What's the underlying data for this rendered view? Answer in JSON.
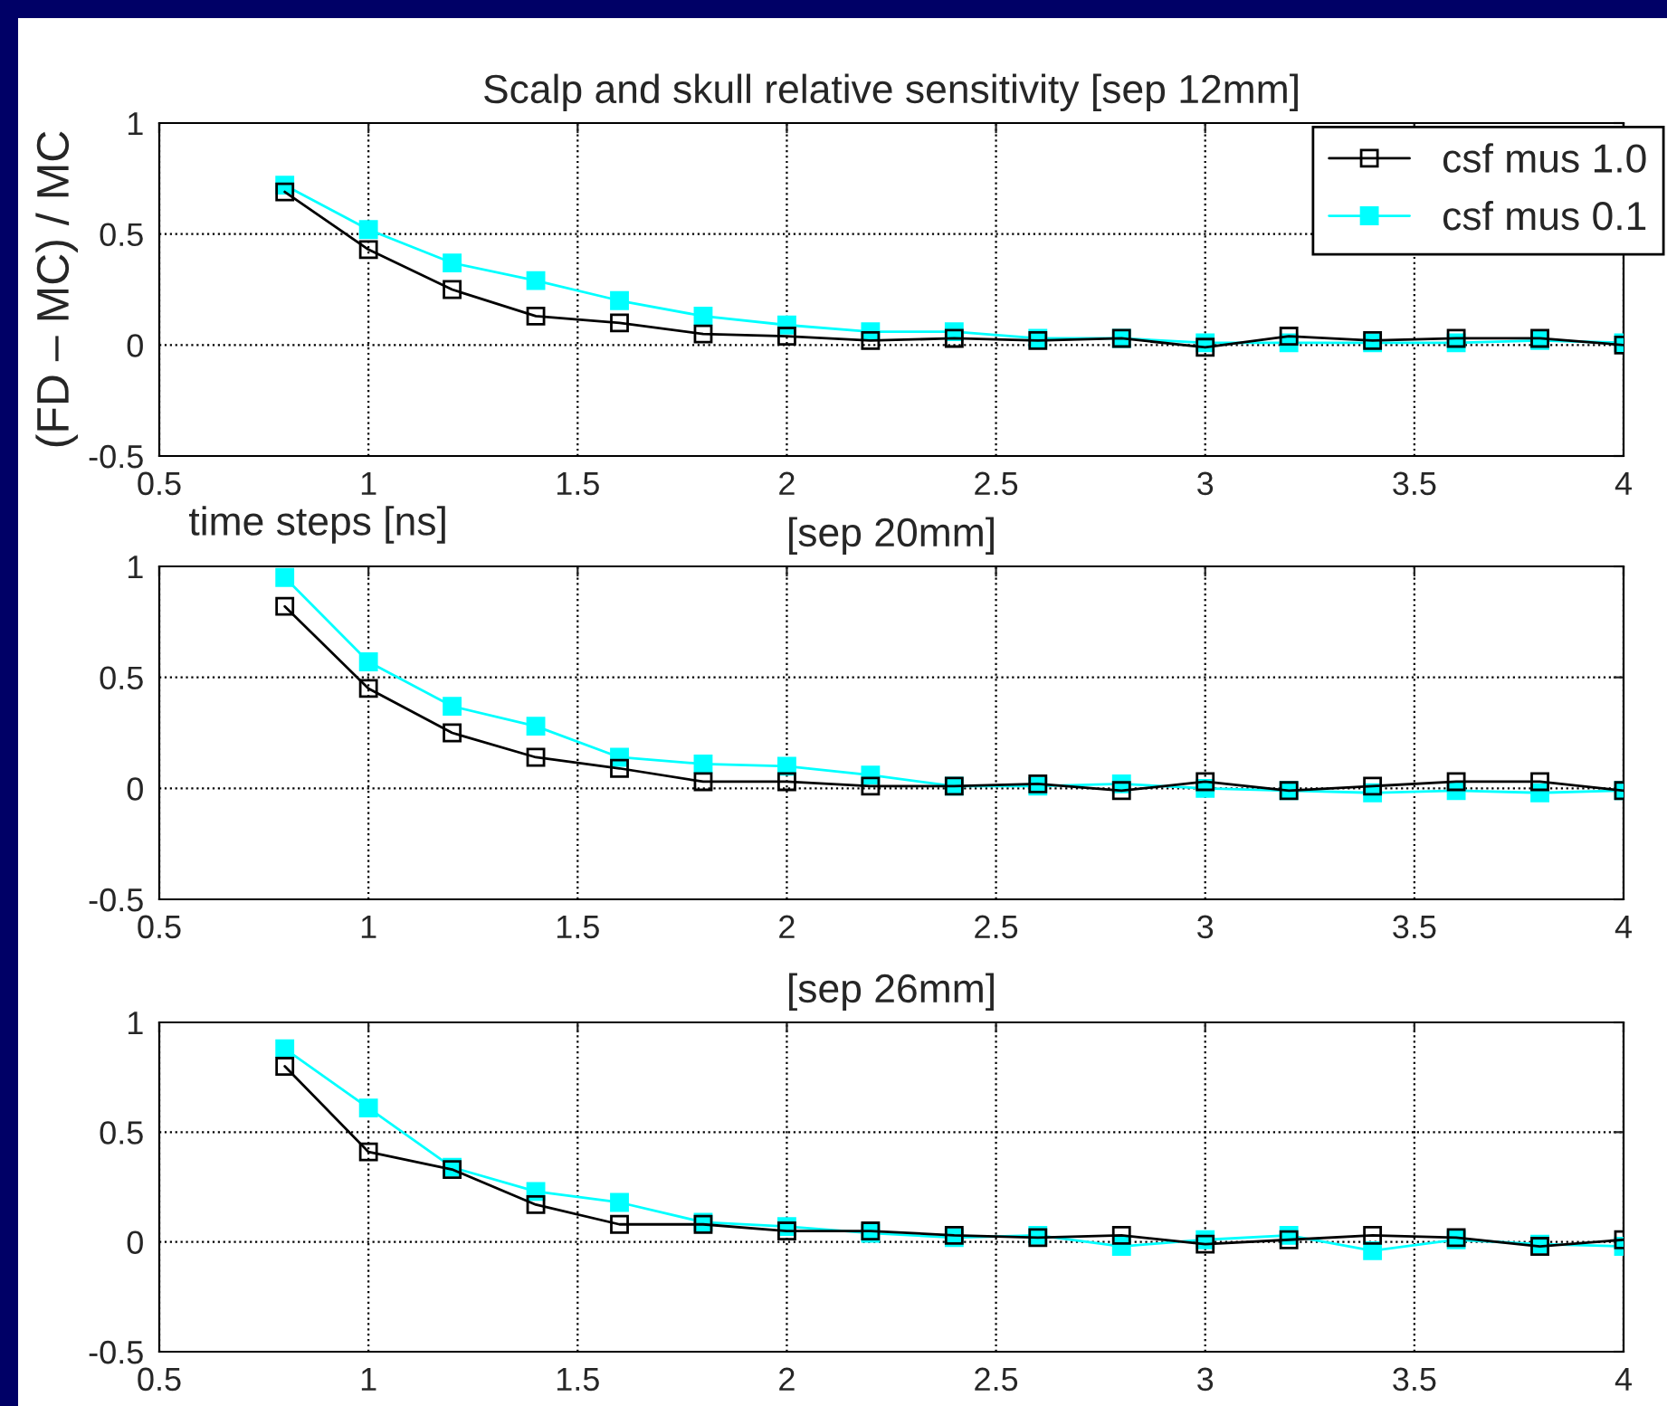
{
  "chart_data": [
    {
      "type": "line",
      "title": "Scalp and skull relative sensitivity [sep 12mm]",
      "ylabel": "(FD – MC) / MC",
      "xlabel": "time steps [ns]",
      "x": [
        0.8,
        1.0,
        1.2,
        1.4,
        1.6,
        1.8,
        2.0,
        2.2,
        2.4,
        2.6,
        2.8,
        3.0,
        3.2,
        3.4,
        3.6,
        3.8,
        4.0
      ],
      "series": [
        {
          "name": "csf mus 1.0",
          "color": "#000000",
          "values": [
            0.69,
            0.43,
            0.25,
            0.13,
            0.1,
            0.05,
            0.04,
            0.02,
            0.03,
            0.02,
            0.03,
            -0.01,
            0.04,
            0.02,
            0.03,
            0.03,
            0.0
          ]
        },
        {
          "name": "csf mus 0.1",
          "color": "#00ffff",
          "values": [
            0.72,
            0.52,
            0.37,
            0.29,
            0.2,
            0.13,
            0.09,
            0.06,
            0.06,
            0.03,
            0.03,
            0.01,
            0.01,
            0.01,
            0.01,
            0.02,
            0.01
          ]
        }
      ],
      "xlim": [
        0.5,
        4
      ],
      "xticks": [
        0.5,
        1,
        1.5,
        2,
        2.5,
        3,
        3.5,
        4
      ],
      "ylim": [
        -0.5,
        1
      ],
      "yticks": [
        -0.5,
        0,
        0.5,
        1
      ],
      "grid": true,
      "legend": "top right",
      "marker": "square",
      "line_style": "solid"
    },
    {
      "type": "line",
      "title": "[sep 20mm]",
      "x": [
        0.8,
        1.0,
        1.2,
        1.4,
        1.6,
        1.8,
        2.0,
        2.2,
        2.4,
        2.6,
        2.8,
        3.0,
        3.2,
        3.4,
        3.6,
        3.8,
        4.0
      ],
      "series": [
        {
          "color": "#000000",
          "values": [
            0.82,
            0.45,
            0.25,
            0.14,
            0.09,
            0.03,
            0.03,
            0.01,
            0.01,
            0.02,
            -0.01,
            0.03,
            -0.01,
            0.01,
            0.03,
            0.03,
            -0.01
          ]
        },
        {
          "color": "#00ffff",
          "values": [
            0.95,
            0.57,
            0.37,
            0.28,
            0.14,
            0.11,
            0.1,
            0.06,
            0.01,
            0.01,
            0.02,
            0.0,
            -0.01,
            -0.02,
            -0.01,
            -0.02,
            -0.01
          ]
        }
      ],
      "xlim": [
        0.5,
        4
      ],
      "xticks": [
        0.5,
        1,
        1.5,
        2,
        2.5,
        3,
        3.5,
        4
      ],
      "ylim": [
        -0.5,
        1
      ],
      "yticks": [
        -0.5,
        0,
        0.5,
        1
      ],
      "grid": true,
      "marker": "square",
      "line_style": "solid"
    },
    {
      "type": "line",
      "title": "[sep 26mm]",
      "x": [
        0.8,
        1.0,
        1.2,
        1.4,
        1.6,
        1.8,
        2.0,
        2.2,
        2.4,
        2.6,
        2.8,
        3.0,
        3.2,
        3.4,
        3.6,
        3.8,
        4.0
      ],
      "series": [
        {
          "color": "#000000",
          "values": [
            0.8,
            0.41,
            0.33,
            0.17,
            0.08,
            0.08,
            0.05,
            0.05,
            0.03,
            0.02,
            0.03,
            -0.01,
            0.01,
            0.03,
            0.02,
            -0.02,
            0.01
          ]
        },
        {
          "color": "#00ffff",
          "values": [
            0.88,
            0.61,
            0.34,
            0.23,
            0.18,
            0.09,
            0.07,
            0.04,
            0.02,
            0.03,
            -0.02,
            0.01,
            0.03,
            -0.04,
            0.01,
            -0.01,
            -0.02
          ]
        }
      ],
      "xlim": [
        0.5,
        4
      ],
      "xticks": [
        0.5,
        1,
        1.5,
        2,
        2.5,
        3,
        3.5,
        4
      ],
      "ylim": [
        -0.5,
        1
      ],
      "yticks": [
        -0.5,
        0,
        0.5,
        1
      ],
      "grid": true,
      "marker": "square",
      "line_style": "solid"
    }
  ]
}
